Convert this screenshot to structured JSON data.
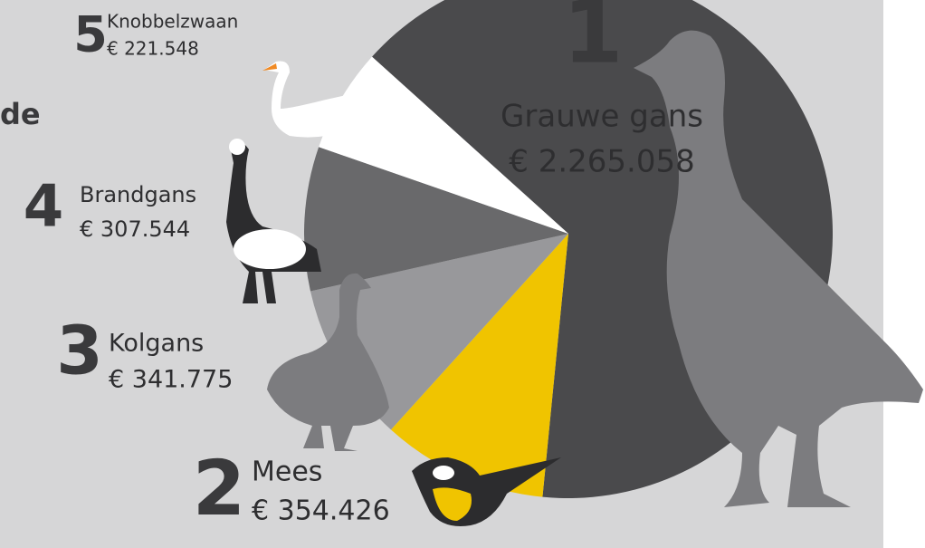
{
  "chart_data": {
    "type": "pie",
    "title": "de",
    "categories": [
      "Grauwe gans",
      "Mees",
      "Kolgans",
      "Brandgans",
      "Knobbelzwaan"
    ],
    "ranks": [
      1,
      2,
      3,
      4,
      5
    ],
    "values": [
      2265058,
      354426,
      341775,
      307544,
      221548
    ],
    "value_labels": [
      "€ 2.265.058",
      "€ 354.426",
      "€ 341.775",
      "€ 307.544",
      "€ 221.548"
    ],
    "colors": [
      "#4a4a4c",
      "#f0c400",
      "#98989b",
      "#69696b",
      "#ffffff"
    ]
  }
}
